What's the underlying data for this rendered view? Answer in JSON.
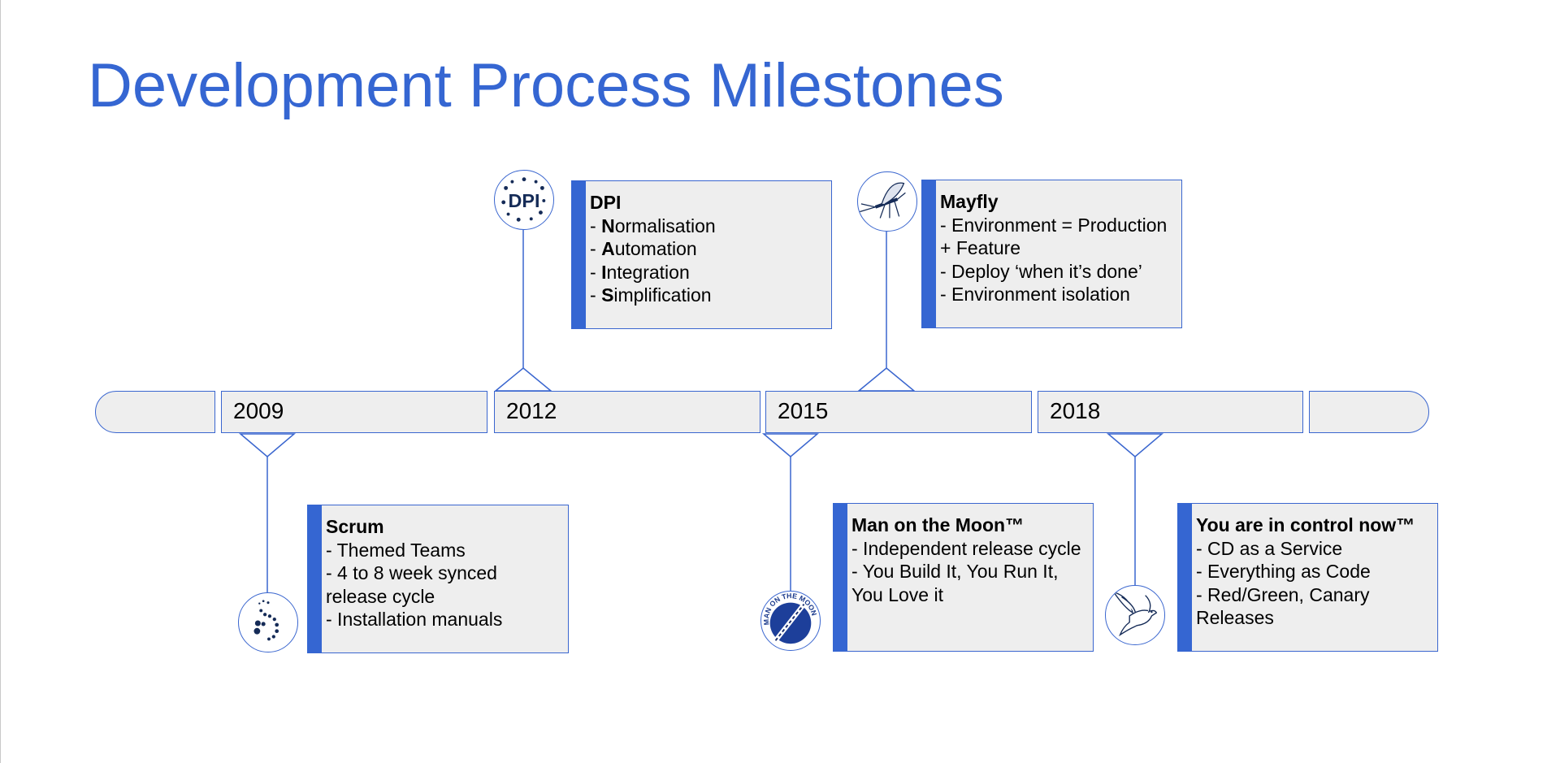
{
  "title": "Development Process Milestones",
  "accent_color": "#3566d2",
  "box_fill": "#eeeeee",
  "years": [
    "2009",
    "2012",
    "2015",
    "2018"
  ],
  "milestones": [
    {
      "title": "Scrum",
      "icon": "dots-spiral-icon",
      "lines": [
        "- Themed Teams",
        "- 4 to 8 week synced release cycle",
        "- Installation manuals"
      ]
    },
    {
      "title": "DPI",
      "icon": "dpi-logo-icon",
      "lines": [
        {
          "prefix": "- ",
          "bold": "N",
          "rest": "ormalisation"
        },
        {
          "prefix": "- ",
          "bold": "A",
          "rest": "utomation"
        },
        {
          "prefix": "- ",
          "bold": "I",
          "rest": "ntegration"
        },
        {
          "prefix": "- ",
          "bold": "S",
          "rest": "implification"
        }
      ]
    },
    {
      "title": "Man on the Moon™",
      "icon": "man-on-the-moon-rocket-icon",
      "icon_text": "MAN ON THE MOON",
      "lines": [
        "- Independent release cycle",
        "- You Build It, You Run It, You Love it"
      ]
    },
    {
      "title": "Mayfly",
      "icon": "mayfly-insect-icon",
      "lines": [
        "- Environment = Production + Feature",
        "- Deploy ‘when it’s done’",
        "- Environment isolation"
      ]
    },
    {
      "title": "You are in control now™",
      "icon": "dove-bird-icon",
      "lines": [
        "- CD as a Service",
        "- Everything as Code",
        "- Red/Green, Canary Releases"
      ]
    }
  ]
}
